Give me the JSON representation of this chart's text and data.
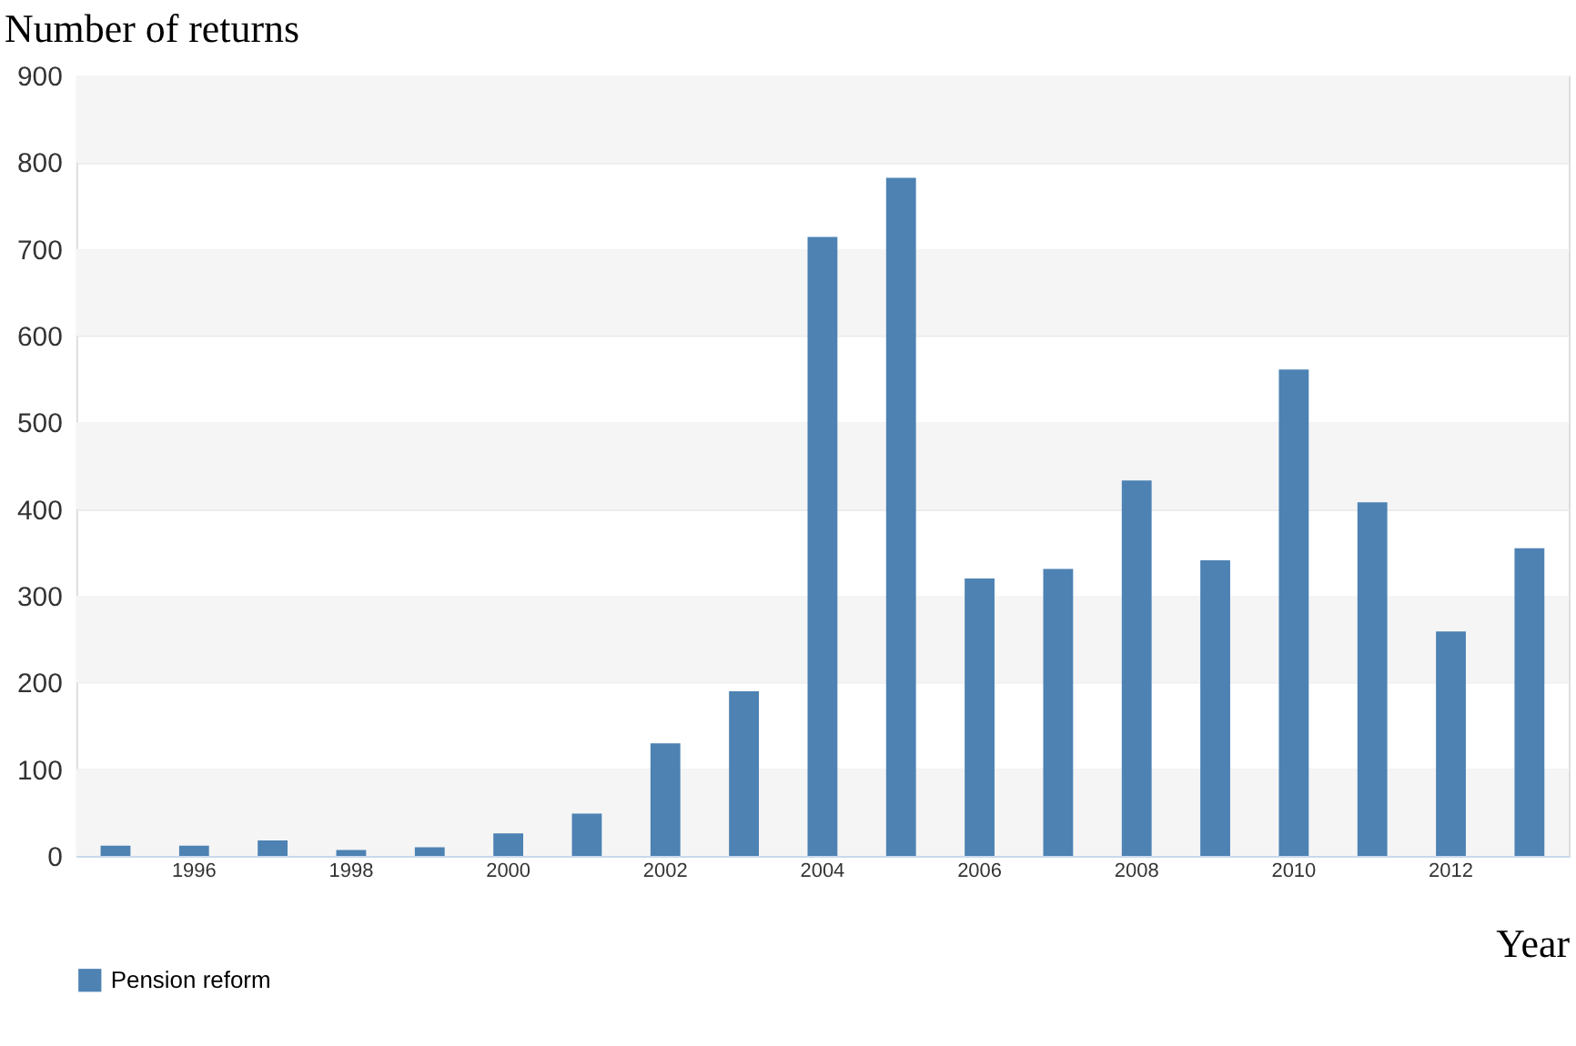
{
  "chart_data": {
    "type": "bar",
    "ylabel": "Number of returns",
    "xlabel": "Year",
    "categories": [
      null,
      "1996",
      null,
      "1998",
      null,
      "2000",
      null,
      "2002",
      null,
      "2004",
      null,
      "2006",
      null,
      "2008",
      null,
      "2010",
      null,
      "2012",
      null
    ],
    "series": [
      {
        "name": "Pension reform",
        "color": "#4d82b3",
        "values": [
          12,
          12,
          18,
          7,
          10,
          26,
          49,
          130,
          190,
          714,
          782,
          320,
          331,
          433,
          341,
          561,
          408,
          259,
          355
        ]
      }
    ],
    "ylim": [
      0,
      900
    ],
    "yticks": [
      0,
      100,
      200,
      300,
      400,
      500,
      600,
      700,
      800,
      900
    ],
    "grid": true,
    "legend": "bottom"
  }
}
